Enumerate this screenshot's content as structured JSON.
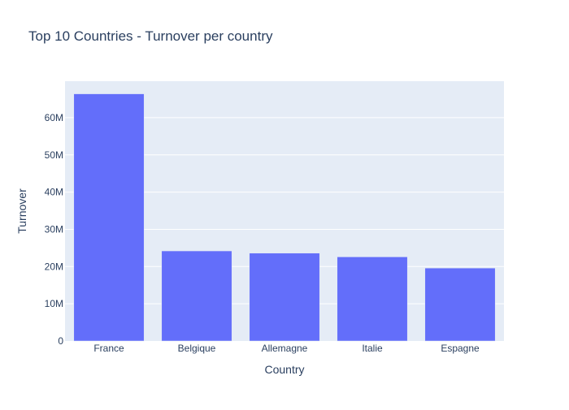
{
  "chart_data": {
    "type": "bar",
    "title": "Top 10 Countries - Turnover per country",
    "xlabel": "Country",
    "ylabel": "Turnover",
    "categories": [
      "France",
      "Belgique",
      "Allemagne",
      "Italie",
      "Espagne"
    ],
    "values": [
      66400000,
      24200000,
      23600000,
      22600000,
      19600000
    ],
    "ylim": [
      0,
      69800000
    ],
    "yticks": [
      0,
      10000000,
      20000000,
      30000000,
      40000000,
      50000000,
      60000000
    ],
    "ytick_labels": [
      "0",
      "10M",
      "20M",
      "30M",
      "40M",
      "50M",
      "60M"
    ],
    "grid": true,
    "legend": "none"
  },
  "colors": {
    "bar": "#636efa",
    "plot_background": "#e5ecf6",
    "gridline": "#ffffff",
    "text": "#2a3f5f"
  }
}
